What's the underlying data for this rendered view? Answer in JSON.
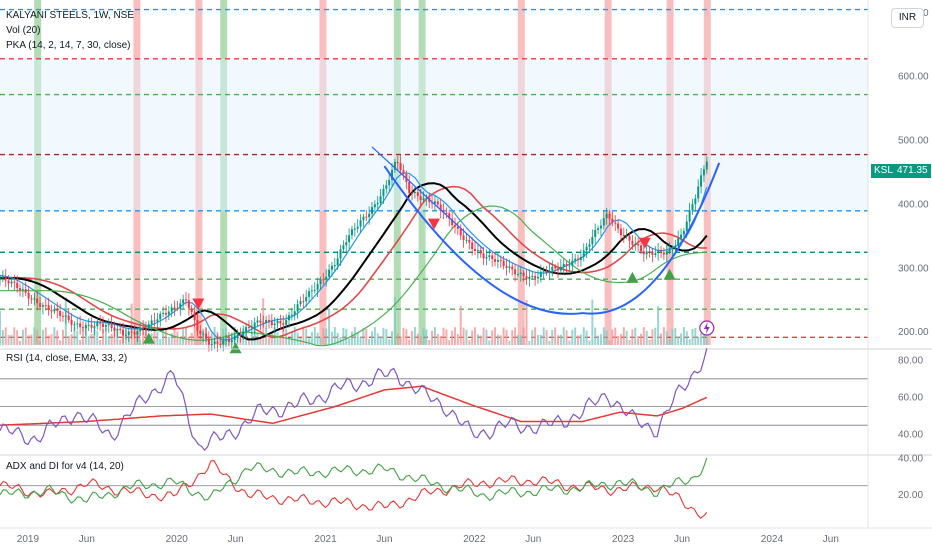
{
  "legends": {
    "title": "KALYANI STEELS, 1W, NSE",
    "vol": "Vol (20)",
    "pka": "PKA (14, 2, 14, 7, 30, close)",
    "rsi": "RSI (14, close, EMA, 33, 2)",
    "adx": "ADX and DI for v4 (14, 20)"
  },
  "currency_button": "INR",
  "last_price": {
    "symbol": "KSL",
    "value": "471.35",
    "color": "#089981"
  },
  "colors": {
    "candle_up": "#089981",
    "candle_down": "#f23645",
    "bg_red": "#f7a9a8",
    "bg_green": "#a5d6a7",
    "ma_black": "#000000",
    "ma_red": "#e04a4a",
    "ma_blue": "#2196f3",
    "ma_green": "#4caf50",
    "cup": "#2962ff",
    "rsi": "#7e57c2",
    "rsi_ma": "#e53935",
    "adx_plus": "#43a047",
    "adx_minus": "#e53935"
  },
  "chart_data": [
    {
      "type": "candlestick",
      "name": "KALYANI STEELS, 1W, NSE",
      "y_ticks": [
        "200.00",
        "300.00",
        "400.00",
        "500.00",
        "600.00",
        "700.00"
      ],
      "x_ticks": [
        "2019",
        "Jun",
        "2020",
        "Jun",
        "2021",
        "Jun",
        "2022",
        "Jun",
        "2023",
        "Jun",
        "2024",
        "Jun"
      ],
      "ylim": [
        180,
        720
      ],
      "xlim": [
        "2018-11",
        "2024-09"
      ],
      "weekly_close_path": [
        [
          "2018-11",
          285
        ],
        [
          "2019-01",
          262
        ],
        [
          "2019-03",
          236
        ],
        [
          "2019-05",
          212
        ],
        [
          "2019-07",
          212
        ],
        [
          "2019-09",
          198
        ],
        [
          "2019-11",
          210
        ],
        [
          "2020-01",
          238
        ],
        [
          "2020-02",
          255
        ],
        [
          "2020-03",
          200
        ],
        [
          "2020-04",
          178
        ],
        [
          "2020-06",
          195
        ],
        [
          "2020-08",
          215
        ],
        [
          "2020-10",
          218
        ],
        [
          "2020-12",
          260
        ],
        [
          "2021-02",
          310
        ],
        [
          "2021-03",
          345
        ],
        [
          "2021-05",
          395
        ],
        [
          "2021-06",
          425
        ],
        [
          "2021-07",
          468
        ],
        [
          "2021-08",
          420
        ],
        [
          "2021-10",
          405
        ],
        [
          "2021-12",
          355
        ],
        [
          "2022-02",
          320
        ],
        [
          "2022-04",
          300
        ],
        [
          "2022-06",
          285
        ],
        [
          "2022-08",
          300
        ],
        [
          "2022-10",
          322
        ],
        [
          "2022-12",
          385
        ],
        [
          "2023-01",
          360
        ],
        [
          "2023-03",
          320
        ],
        [
          "2023-05",
          330
        ],
        [
          "2023-06",
          352
        ],
        [
          "2023-07",
          405
        ],
        [
          "2023-08",
          471.35
        ]
      ],
      "horizontal_levels": [
        {
          "value": 705,
          "color": "#2196f3"
        },
        {
          "value": 628,
          "color": "#f23645"
        },
        {
          "value": 572,
          "color": "#4caf50"
        },
        {
          "value": 478,
          "color": "#9e2b2b"
        },
        {
          "value": 390,
          "color": "#2196f3"
        },
        {
          "value": 325,
          "color": "#00897b"
        },
        {
          "value": 283,
          "color": "#4caf50"
        },
        {
          "value": 236,
          "color": "#4caf50"
        },
        {
          "value": 192,
          "color": "#f23645"
        }
      ],
      "signals_up": [
        [
          "2019-11",
          190
        ],
        [
          "2020-06",
          175
        ],
        [
          "2023-02",
          285
        ],
        [
          "2023-05",
          290
        ]
      ],
      "signals_down": [
        [
          "2020-03",
          245
        ],
        [
          "2021-10",
          370
        ],
        [
          "2023-03",
          340
        ]
      ],
      "cup_arc": {
        "left": [
          "2021-06",
          460
        ],
        "bottom": [
          "2022-10",
          230
        ],
        "right": [
          "2023-09",
          465
        ]
      },
      "current_price": 471.35
    },
    {
      "type": "line",
      "name": "RSI (14, close, EMA, 33, 2)",
      "y_ticks": [
        "40.00",
        "60.00",
        "80.00"
      ],
      "ylim": [
        30,
        85
      ],
      "levels": [
        70,
        55,
        45
      ],
      "series": [
        {
          "name": "RSI",
          "points": [
            [
              "2018-11",
              42
            ],
            [
              "2019-02",
              38
            ],
            [
              "2019-05",
              52
            ],
            [
              "2019-08",
              40
            ],
            [
              "2019-11",
              62
            ],
            [
              "2020-01",
              72
            ],
            [
              "2020-03",
              34
            ],
            [
              "2020-05",
              38
            ],
            [
              "2020-08",
              52
            ],
            [
              "2020-11",
              56
            ],
            [
              "2021-02",
              64
            ],
            [
              "2021-05",
              70
            ],
            [
              "2021-07",
              73
            ],
            [
              "2021-09",
              62
            ],
            [
              "2021-11",
              55
            ],
            [
              "2022-01",
              40
            ],
            [
              "2022-04",
              45
            ],
            [
              "2022-07",
              44
            ],
            [
              "2022-10",
              52
            ],
            [
              "2022-12",
              62
            ],
            [
              "2023-02",
              48
            ],
            [
              "2023-04",
              43
            ],
            [
              "2023-06",
              65
            ],
            [
              "2023-08",
              83
            ]
          ]
        },
        {
          "name": "RSI-MA",
          "points": [
            [
              "2018-11",
              45
            ],
            [
              "2019-06",
              47
            ],
            [
              "2019-12",
              50
            ],
            [
              "2020-04",
              51
            ],
            [
              "2020-09",
              46
            ],
            [
              "2021-02",
              55
            ],
            [
              "2021-06",
              64
            ],
            [
              "2021-09",
              66
            ],
            [
              "2022-01",
              56
            ],
            [
              "2022-05",
              47
            ],
            [
              "2022-10",
              47
            ],
            [
              "2023-01",
              52
            ],
            [
              "2023-04",
              50
            ],
            [
              "2023-06",
              54
            ],
            [
              "2023-08",
              60
            ]
          ]
        }
      ]
    },
    {
      "type": "line",
      "name": "ADX and DI for v4 (14, 20)",
      "y_ticks": [
        "20.00",
        "40.00"
      ],
      "ylim": [
        5,
        42
      ],
      "levels": [
        25
      ],
      "series": [
        {
          "name": "+DI",
          "points": [
            [
              "2018-11",
              20
            ],
            [
              "2019-03",
              22
            ],
            [
              "2019-06",
              17
            ],
            [
              "2019-10",
              25
            ],
            [
              "2020-01",
              27
            ],
            [
              "2020-04",
              18
            ],
            [
              "2020-07",
              35
            ],
            [
              "2020-11",
              32
            ],
            [
              "2021-02",
              33
            ],
            [
              "2021-06",
              34
            ],
            [
              "2021-10",
              26
            ],
            [
              "2022-02",
              20
            ],
            [
              "2022-06",
              22
            ],
            [
              "2022-10",
              24
            ],
            [
              "2023-01",
              27
            ],
            [
              "2023-04",
              22
            ],
            [
              "2023-07",
              30
            ],
            [
              "2023-08",
              38
            ]
          ]
        },
        {
          "name": "-DI",
          "points": [
            [
              "2018-11",
              25
            ],
            [
              "2019-03",
              20
            ],
            [
              "2019-06",
              26
            ],
            [
              "2019-10",
              21
            ],
            [
              "2020-01",
              19
            ],
            [
              "2020-04",
              37
            ],
            [
              "2020-07",
              20
            ],
            [
              "2020-11",
              17
            ],
            [
              "2021-02",
              16
            ],
            [
              "2021-06",
              13
            ],
            [
              "2021-10",
              22
            ],
            [
              "2022-02",
              27
            ],
            [
              "2022-06",
              28
            ],
            [
              "2022-10",
              24
            ],
            [
              "2023-01",
              23
            ],
            [
              "2023-04",
              25
            ],
            [
              "2023-07",
              12
            ],
            [
              "2023-08",
              8
            ]
          ]
        }
      ]
    }
  ]
}
